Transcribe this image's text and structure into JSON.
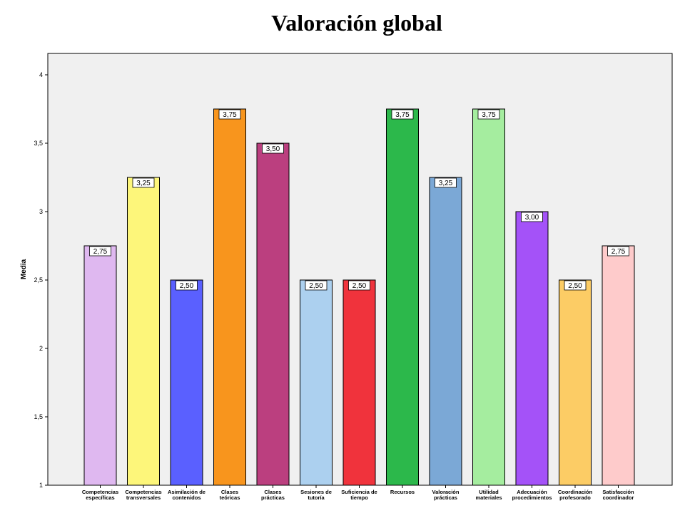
{
  "chart_data": {
    "type": "bar",
    "title": "Valoración global",
    "ylabel": "Media",
    "xlabel": "",
    "ylim": [
      1,
      4
    ],
    "yticks": [
      "1",
      "1,5",
      "2",
      "2,5",
      "3",
      "3,5",
      "4"
    ],
    "grid": false,
    "categories": [
      [
        "Competencias",
        "específicas"
      ],
      [
        "Competencias",
        "transversales"
      ],
      [
        "Asimilación de",
        "contenidos"
      ],
      [
        "Clases",
        "teóricas"
      ],
      [
        "Clases",
        "prácticas"
      ],
      [
        "Sesiones de",
        "tutoría"
      ],
      [
        "Suficiencia de",
        "tiempo"
      ],
      [
        "Recursos"
      ],
      [
        "Valoración",
        "prácticas"
      ],
      [
        "Utilidad",
        "materiales"
      ],
      [
        "Adecuación",
        "procedimientos"
      ],
      [
        "Coordinación",
        "profesorado"
      ],
      [
        "Satisfacción",
        "coordinador"
      ]
    ],
    "values": [
      2.75,
      3.25,
      2.5,
      3.75,
      3.5,
      2.5,
      2.5,
      3.75,
      3.25,
      3.75,
      3.0,
      2.5,
      2.75
    ],
    "data_labels": [
      "2,75",
      "3,25",
      "2,50",
      "3,75",
      "3,50",
      "2,50",
      "2,50",
      "3,75",
      "3,25",
      "3,75",
      "3,00",
      "2,50",
      "2,75"
    ],
    "colors": [
      "#dfb8f0",
      "#fdf67a",
      "#5a60ff",
      "#f8951d",
      "#bb3f7f",
      "#acd0ef",
      "#f0333c",
      "#2cb84b",
      "#7ba8d6",
      "#a5ed9f",
      "#a452f8",
      "#fccc65",
      "#fecbcb"
    ],
    "plot_background": "#f0f0f0"
  }
}
